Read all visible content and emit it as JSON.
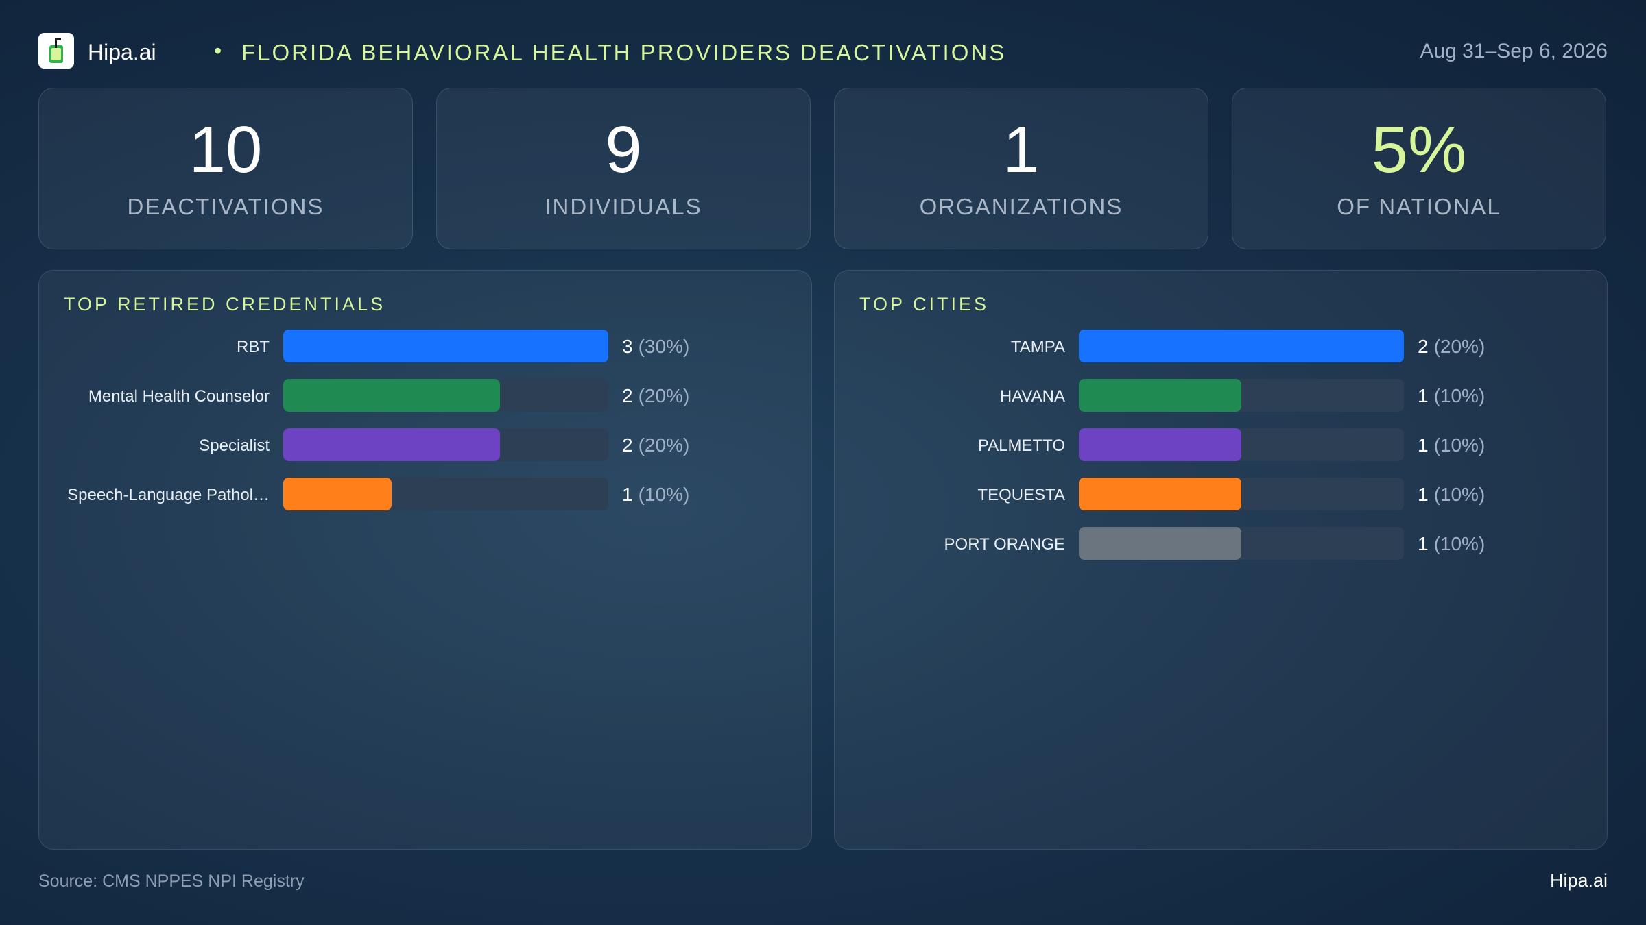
{
  "header": {
    "brand": "Hipa.ai",
    "separator": "•",
    "title": "FLORIDA BEHAVIORAL HEALTH PROVIDERS DEACTIVATIONS",
    "date_range": "Aug 31–Sep 6, 2026",
    "logo_icon": "drink-cup-icon"
  },
  "kpis": [
    {
      "value": "10",
      "label": "DEACTIVATIONS"
    },
    {
      "value": "9",
      "label": "INDIVIDUALS"
    },
    {
      "value": "1",
      "label": "ORGANIZATIONS"
    },
    {
      "value": "5%",
      "label": "OF NATIONAL"
    }
  ],
  "colors": {
    "accent": "#d7f59b",
    "blue": "#1672ff",
    "green": "#1f8a52",
    "purple": "#6d43c4",
    "orange": "#ff7f1a",
    "gray": "#6b7580",
    "track": "#2c3f55"
  },
  "chart_data": [
    {
      "type": "bar",
      "orientation": "horizontal",
      "title": "TOP RETIRED CREDENTIALS",
      "categories": [
        "RBT",
        "Mental Health Counselor",
        "Specialist",
        "Speech-Language Pathol…"
      ],
      "values": [
        3,
        2,
        2,
        1
      ],
      "percent_labels": [
        "(30%)",
        "(20%)",
        "(20%)",
        "(10%)"
      ],
      "bar_colors": [
        "#1672ff",
        "#1f8a52",
        "#6d43c4",
        "#ff7f1a"
      ],
      "xlim": [
        0,
        3
      ]
    },
    {
      "type": "bar",
      "orientation": "horizontal",
      "title": "TOP CITIES",
      "categories": [
        "TAMPA",
        "HAVANA",
        "PALMETTO",
        "TEQUESTA",
        "PORT ORANGE"
      ],
      "values": [
        2,
        1,
        1,
        1,
        1
      ],
      "percent_labels": [
        "(20%)",
        "(10%)",
        "(10%)",
        "(10%)",
        "(10%)"
      ],
      "bar_colors": [
        "#1672ff",
        "#1f8a52",
        "#6d43c4",
        "#ff7f1a",
        "#6b7580"
      ],
      "xlim": [
        0,
        2
      ]
    }
  ],
  "footer": {
    "source": "Source: CMS NPPES NPI Registry",
    "brand": "Hipa.ai"
  }
}
